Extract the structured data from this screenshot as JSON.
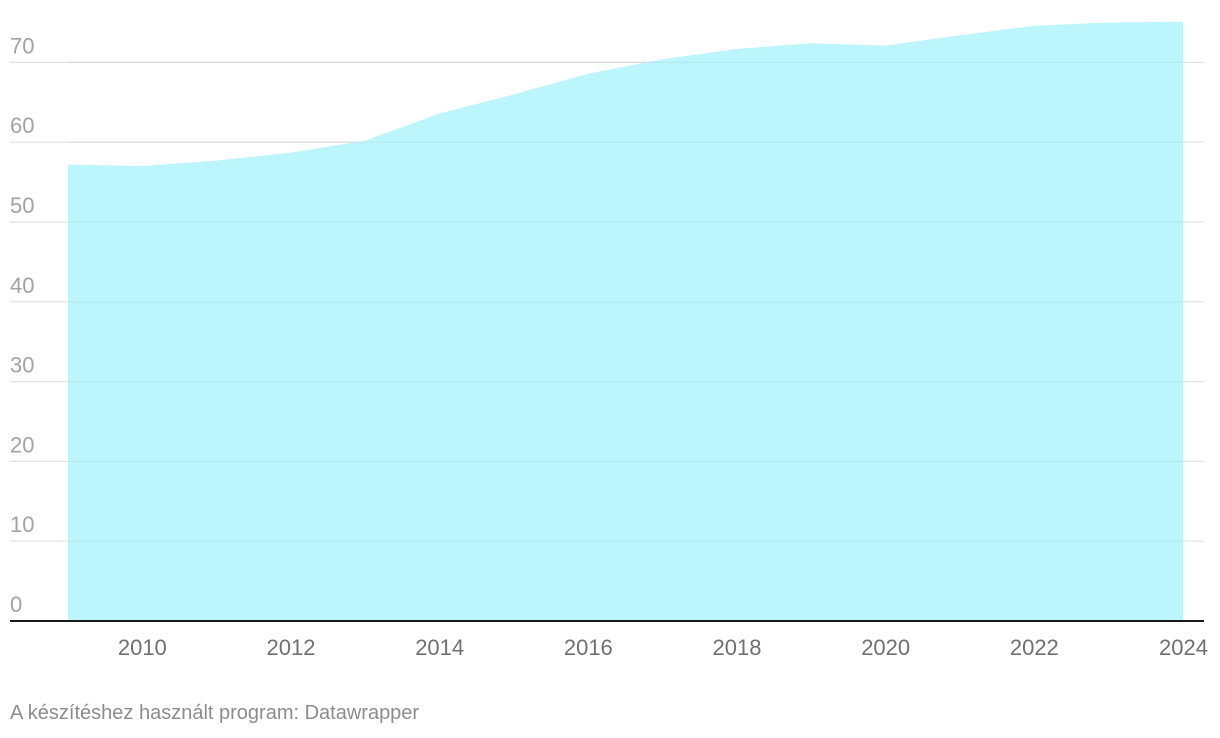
{
  "chart_data": {
    "type": "area",
    "title": "",
    "xlabel": "",
    "ylabel": "",
    "x": [
      2009,
      2010,
      2011,
      2012,
      2013,
      2014,
      2015,
      2016,
      2017,
      2018,
      2019,
      2020,
      2021,
      2022,
      2023,
      2024
    ],
    "series": [
      {
        "values": [
          57.2,
          57.0,
          57.7,
          58.7,
          60.2,
          63.6,
          66.0,
          68.6,
          70.4,
          71.7,
          72.4,
          72.1,
          73.4,
          74.6,
          75.0,
          75.1
        ]
      }
    ],
    "xlim": [
      2009,
      2024
    ],
    "ylim": [
      0,
      70
    ],
    "yticks": [
      0,
      10,
      20,
      30,
      40,
      50,
      60,
      70
    ],
    "xticks": [
      2010,
      2012,
      2014,
      2016,
      2018,
      2020,
      2022,
      2024
    ],
    "grid": true,
    "colors": {
      "fill": "#bdf5fc",
      "gridline": "#e2e2e2",
      "baseline": "#1a1a1a"
    }
  },
  "footer": {
    "credit": "A készítéshez használt program: Datawrapper"
  }
}
